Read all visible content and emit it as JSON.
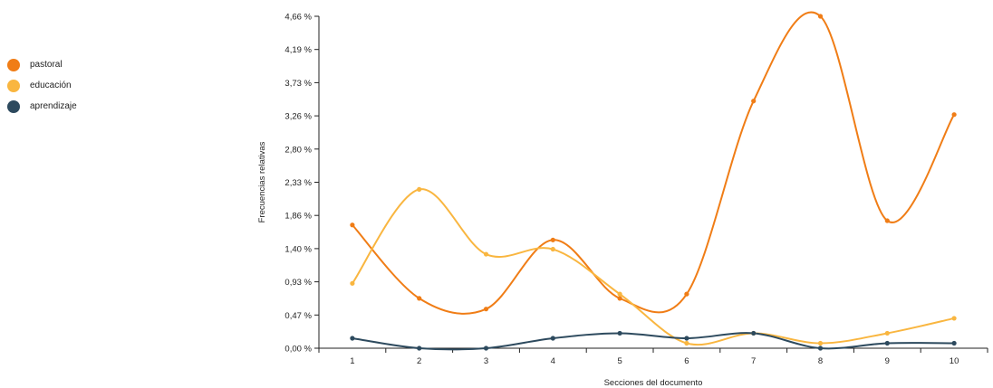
{
  "chart_data": {
    "type": "line",
    "xlabel": "Secciones del documento",
    "ylabel": "Frecuencias relativas",
    "categories": [
      "1",
      "2",
      "3",
      "4",
      "5",
      "6",
      "7",
      "8",
      "9",
      "10"
    ],
    "yticks": [
      "0,00 %",
      "0,47 %",
      "0,93 %",
      "1,40 %",
      "1,86 %",
      "2,33 %",
      "2,80 %",
      "3,26 %",
      "3,73 %",
      "4,19 %",
      "4,66 %"
    ],
    "ylim": [
      0,
      4.66
    ],
    "legend_position": "left",
    "series": [
      {
        "name": "pastoral",
        "color": "#f07d16",
        "values": [
          1.73,
          0.7,
          0.55,
          1.52,
          0.7,
          0.76,
          3.47,
          4.66,
          1.79,
          3.28
        ]
      },
      {
        "name": "educación",
        "color": "#f9b640",
        "values": [
          0.91,
          2.23,
          1.32,
          1.39,
          0.76,
          0.07,
          0.21,
          0.07,
          0.21,
          0.42
        ]
      },
      {
        "name": "aprendizaje",
        "color": "#2d4a5e",
        "values": [
          0.14,
          0.0,
          0.0,
          0.14,
          0.21,
          0.14,
          0.21,
          0.0,
          0.07,
          0.07
        ]
      }
    ]
  }
}
